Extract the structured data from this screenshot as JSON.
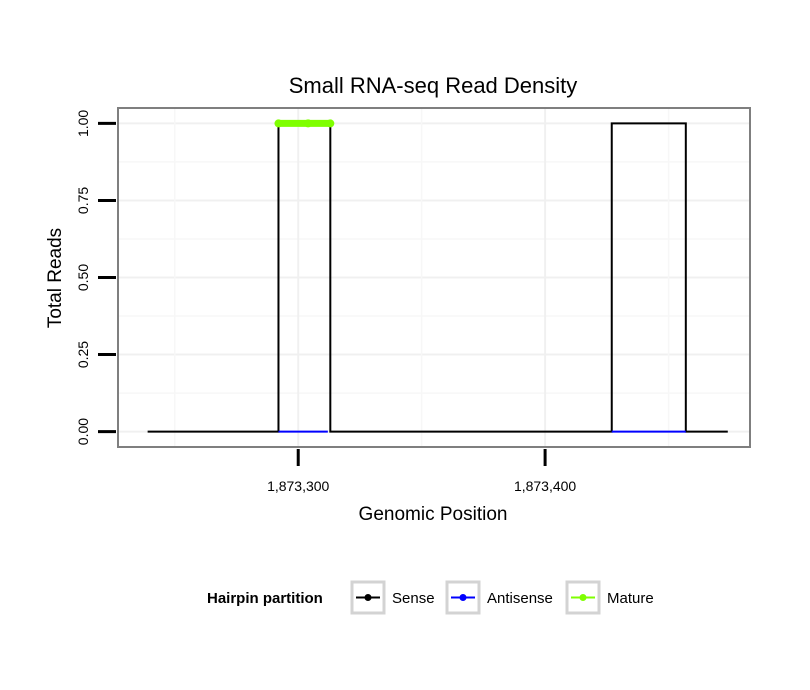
{
  "chart_data": {
    "type": "line",
    "title": "Small RNA-seq Read Density",
    "xlabel": "Genomic Position",
    "ylabel": "Total Reads",
    "xlim": [
      1873227,
      1873483
    ],
    "ylim": [
      -0.05,
      1.05
    ],
    "x_ticks": [
      1873300,
      1873400
    ],
    "x_tick_labels": [
      "1,873,300",
      "1,873,400"
    ],
    "y_ticks": [
      0,
      0.25,
      0.5,
      0.75,
      1.0
    ],
    "y_tick_labels": [
      "0.00",
      "0.25",
      "0.50",
      "0.75",
      "1.00"
    ],
    "grid": true,
    "legend": {
      "title": "Hairpin partition",
      "position": "bottom",
      "entries": [
        {
          "name": "Sense",
          "color": "#000000"
        },
        {
          "name": "Antisense",
          "color": "#0000ff"
        },
        {
          "name": "Mature",
          "color": "#7fff00"
        }
      ]
    },
    "series": [
      {
        "name": "Sense",
        "color": "#000000",
        "x": [
          1873239,
          1873292,
          1873292,
          1873313,
          1873313,
          1873427,
          1873427,
          1873457,
          1873457,
          1873474
        ],
        "y": [
          0,
          0,
          1,
          1,
          0,
          0,
          1,
          1,
          0,
          0
        ]
      },
      {
        "name": "Antisense",
        "color": "#0000ff",
        "x": [
          1873292,
          1873312,
          1873427,
          1873457
        ],
        "y": [
          0,
          0,
          0,
          0
        ],
        "segments": [
          [
            0,
            1
          ],
          [
            2,
            3
          ]
        ]
      },
      {
        "name": "Mature",
        "color": "#7fff00",
        "x": [
          1873292,
          1873304,
          1873313
        ],
        "y": [
          1,
          1,
          1
        ]
      }
    ]
  }
}
